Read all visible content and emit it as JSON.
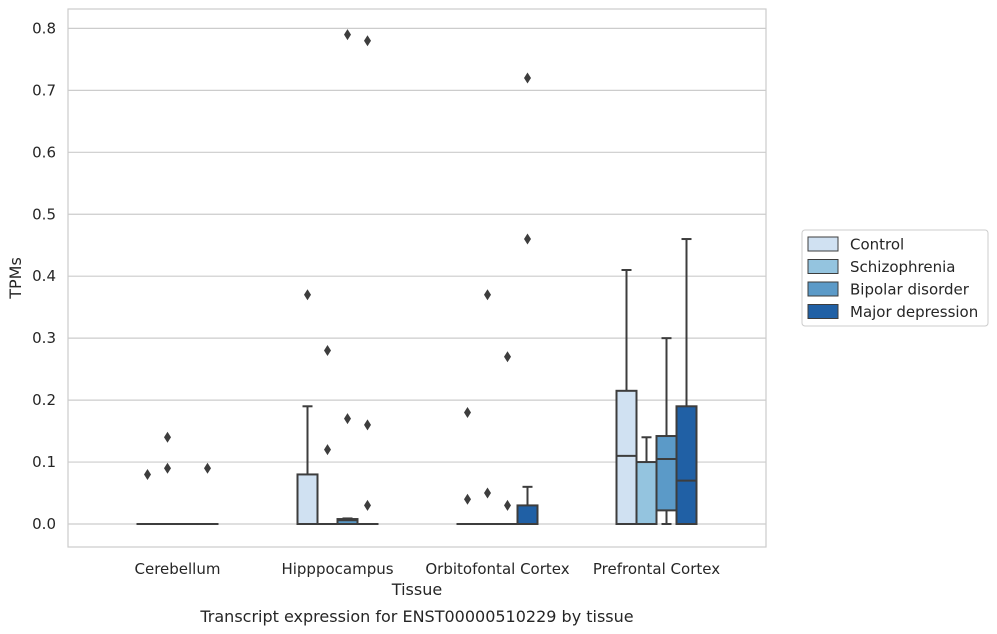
{
  "chart_data": {
    "type": "box",
    "caption": "Transcript expression for ENST00000510229 by tissue",
    "xlabel": "Tissue",
    "ylabel": "TPMs",
    "ylim": [
      -0.04,
      0.83
    ],
    "yticks": [
      0.0,
      0.1,
      0.2,
      0.3,
      0.4,
      0.5,
      0.6,
      0.7,
      0.8
    ],
    "ytick_labels": [
      "0.0",
      "0.1",
      "0.2",
      "0.3",
      "0.4",
      "0.5",
      "0.6",
      "0.7",
      "0.8"
    ],
    "grid": true,
    "legend_position": "right",
    "categories": [
      "Cerebellum",
      "Hipppocampus",
      "Orbitofontal Cortex",
      "Prefrontal Cortex"
    ],
    "series": [
      {
        "name": "Control",
        "color": "#d0e1f2",
        "boxes": [
          {
            "q1": 0,
            "median": 0,
            "q3": 0,
            "whislo": 0,
            "whishi": 0,
            "fliers": [
              0.08
            ]
          },
          {
            "q1": 0,
            "median": 0,
            "q3": 0.08,
            "whislo": 0,
            "whishi": 0.19,
            "fliers": [
              0.37
            ]
          },
          {
            "q1": 0,
            "median": 0,
            "q3": 0,
            "whislo": 0,
            "whishi": 0,
            "fliers": [
              0.18,
              0.04
            ]
          },
          {
            "q1": 0,
            "median": 0.11,
            "q3": 0.215,
            "whislo": 0,
            "whishi": 0.41,
            "fliers": []
          }
        ]
      },
      {
        "name": "Schizophrenia",
        "color": "#94c4df",
        "boxes": [
          {
            "q1": 0,
            "median": 0,
            "q3": 0,
            "whislo": 0,
            "whishi": 0,
            "fliers": [
              0.14,
              0.09
            ]
          },
          {
            "q1": 0,
            "median": 0,
            "q3": 0,
            "whislo": 0,
            "whishi": 0,
            "fliers": [
              0.28,
              0.12
            ]
          },
          {
            "q1": 0,
            "median": 0,
            "q3": 0,
            "whislo": 0,
            "whishi": 0,
            "fliers": [
              0.37,
              0.05
            ]
          },
          {
            "q1": 0,
            "median": 0,
            "q3": 0.1,
            "whislo": 0,
            "whishi": 0.14,
            "fliers": []
          }
        ]
      },
      {
        "name": "Bipolar disorder",
        "color": "#5b9ac8",
        "boxes": [
          {
            "q1": 0,
            "median": 0,
            "q3": 0,
            "whislo": 0,
            "whishi": 0,
            "fliers": []
          },
          {
            "q1": 0,
            "median": 0.006,
            "q3": 0.008,
            "whislo": 0,
            "whishi": 0.009,
            "fliers": [
              0.79,
              0.17
            ]
          },
          {
            "q1": 0,
            "median": 0,
            "q3": 0,
            "whislo": 0,
            "whishi": 0,
            "fliers": [
              0.27,
              0.03
            ]
          },
          {
            "q1": 0.022,
            "median": 0.105,
            "q3": 0.142,
            "whislo": 0,
            "whishi": 0.3,
            "fliers": []
          }
        ]
      },
      {
        "name": "Major depression",
        "color": "#2060a5",
        "boxes": [
          {
            "q1": 0,
            "median": 0,
            "q3": 0,
            "whislo": 0,
            "whishi": 0,
            "fliers": [
              0.09
            ]
          },
          {
            "q1": 0,
            "median": 0,
            "q3": 0,
            "whislo": 0,
            "whishi": 0,
            "fliers": [
              0.78,
              0.16,
              0.03
            ]
          },
          {
            "q1": 0,
            "median": 0,
            "q3": 0.03,
            "whislo": 0,
            "whishi": 0.06,
            "fliers": [
              0.72,
              0.46
            ]
          },
          {
            "q1": 0,
            "median": 0.07,
            "q3": 0.19,
            "whislo": 0,
            "whishi": 0.46,
            "fliers": []
          }
        ]
      }
    ]
  }
}
